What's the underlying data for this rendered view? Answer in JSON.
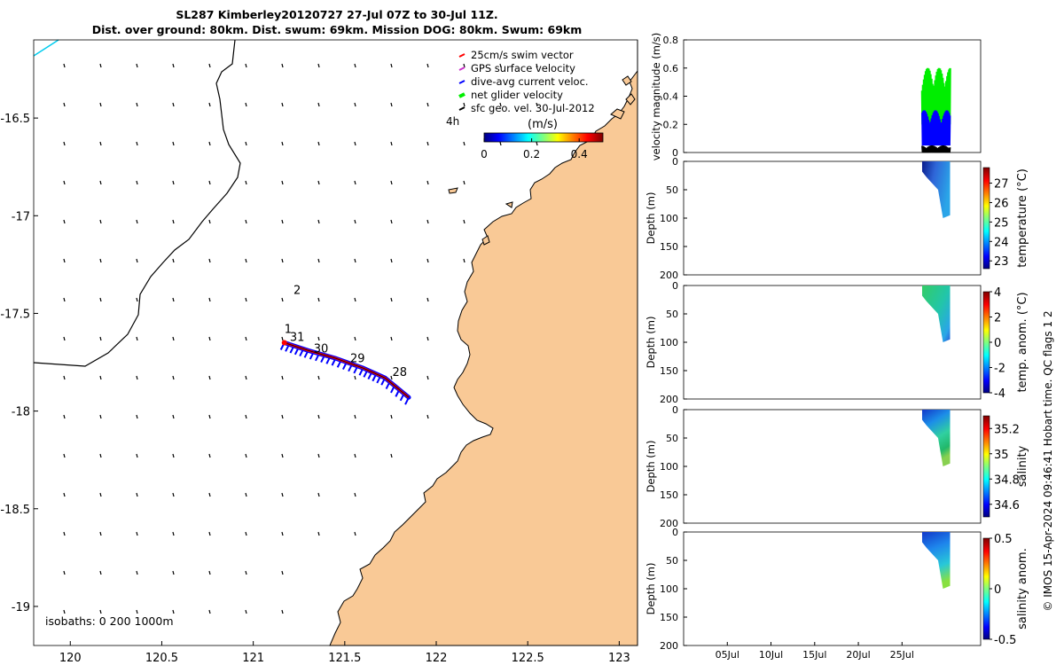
{
  "title": {
    "line1": "SL287 Kimberley20120727 27-Jul 07Z to 30-Jul 11Z.",
    "line2": "Dist. over ground: 80km. Dist. swum: 69km. Mission DOG: 80km. Swum: 69km"
  },
  "credit": "© IMOS 15-Apr-2024 09:46:41 Hobart time. QC flags 1  2",
  "colors": {
    "land": "#f9c996",
    "swim": "#ff0000",
    "gps": "#cc33cc",
    "current": "#0000ff",
    "net": "#00ee00",
    "geo": "#000000",
    "cyan": "#00ccee"
  },
  "chart_data": [
    {
      "type": "map",
      "xlim": [
        119.8,
        123.1
      ],
      "ylim": [
        -19.2,
        -16.1
      ],
      "xticks": [
        "120",
        "120.5",
        "121",
        "121.5",
        "122",
        "122.5",
        "123"
      ],
      "xtick_values": [
        120,
        120.5,
        121,
        121.5,
        122,
        122.5,
        123
      ],
      "yticks": [
        "-16.5",
        "-17",
        "-17.5",
        "-18",
        "-18.5",
        "-19"
      ],
      "ytick_values": [
        -16.5,
        -17,
        -17.5,
        -18,
        -18.5,
        -19
      ],
      "legend": [
        {
          "label": "25cm/s swim vector",
          "color": "#ff0000"
        },
        {
          "label": "GPS surface velocity",
          "color": "#cc33cc"
        },
        {
          "label": "dive-avg current veloc.",
          "color": "#0000ff"
        },
        {
          "label": "net glider velocity",
          "color": "#00ee00"
        },
        {
          "label": "sfc geo. vel. 30-Jul-2012",
          "color": "#000000"
        }
      ],
      "colorbar": {
        "title": "(m/s)",
        "ticks": [
          "0",
          "0.2",
          "0.4"
        ],
        "range": [
          0,
          0.5
        ]
      },
      "isobaths_label": "isobaths: 0   200  1000m",
      "annotation_4h": "4h",
      "track": [
        [
          121.17,
          -17.65
        ],
        [
          121.3,
          -17.69
        ],
        [
          121.45,
          -17.73
        ],
        [
          121.6,
          -17.78
        ],
        [
          121.72,
          -17.83
        ],
        [
          121.85,
          -17.93
        ]
      ],
      "track_day_labels": [
        {
          "text": "1",
          "lon": 121.17,
          "lat": -17.6
        },
        {
          "text": "2",
          "lon": 121.22,
          "lat": -17.4
        },
        {
          "text": "31",
          "lon": 121.2,
          "lat": -17.64
        },
        {
          "text": "30",
          "lon": 121.33,
          "lat": -17.7
        },
        {
          "text": "29",
          "lon": 121.53,
          "lat": -17.75
        },
        {
          "text": "28",
          "lon": 121.76,
          "lat": -17.82
        }
      ]
    },
    {
      "type": "line",
      "ylabel": "velocity magnitude (m/s)",
      "ylim": [
        0,
        0.8
      ],
      "yticks": [
        "0",
        "0.2",
        "0.4",
        "0.6",
        "0.8"
      ],
      "xlim_days": [
        0,
        34
      ],
      "series": [
        {
          "name": "net glider velocity",
          "color": "#00ee00",
          "range": [
            0.2,
            0.6
          ]
        },
        {
          "name": "dive-avg current veloc.",
          "color": "#0000ff",
          "range": [
            0.05,
            0.3
          ]
        },
        {
          "name": "swim vector",
          "color": "#000000",
          "range": [
            0.0,
            0.05
          ]
        }
      ],
      "data_day_range": [
        27.3,
        30.5
      ]
    },
    {
      "type": "heatmap",
      "ylabel": "Depth (m)",
      "cbar_label": "temperature (°C)",
      "ylim": [
        0,
        200
      ],
      "yticks": [
        "0",
        "50",
        "100",
        "150",
        "200"
      ],
      "cbar_ticks": [
        "23",
        "24",
        "25",
        "26",
        "27"
      ],
      "cbar_range": [
        22.6,
        27.8
      ]
    },
    {
      "type": "heatmap",
      "ylabel": "Depth (m)",
      "cbar_label": "temp. anom. (°C)",
      "ylim": [
        0,
        200
      ],
      "yticks": [
        "0",
        "50",
        "100",
        "150",
        "200"
      ],
      "cbar_ticks": [
        "4",
        "2",
        "0",
        "-2",
        "-4"
      ],
      "cbar_range": [
        -4,
        4
      ]
    },
    {
      "type": "heatmap",
      "ylabel": "Depth (m)",
      "cbar_label": "salinity",
      "ylim": [
        0,
        200
      ],
      "yticks": [
        "0",
        "50",
        "100",
        "150",
        "200"
      ],
      "cbar_ticks": [
        "35.2",
        "35",
        "34.8",
        "34.6"
      ],
      "cbar_range": [
        34.5,
        35.3
      ]
    },
    {
      "type": "heatmap",
      "ylabel": "Depth (m)",
      "cbar_label": "salinity anom.",
      "ylim": [
        0,
        200
      ],
      "yticks": [
        "0",
        "50",
        "100",
        "150",
        "200"
      ],
      "cbar_ticks": [
        "0.5",
        "0",
        "-0.5"
      ],
      "cbar_range": [
        -0.5,
        0.5
      ],
      "xticks": [
        "05Jul",
        "10Jul",
        "15Jul",
        "20Jul",
        "25Jul"
      ],
      "xtick_days": [
        5,
        10,
        15,
        20,
        25
      ]
    }
  ]
}
